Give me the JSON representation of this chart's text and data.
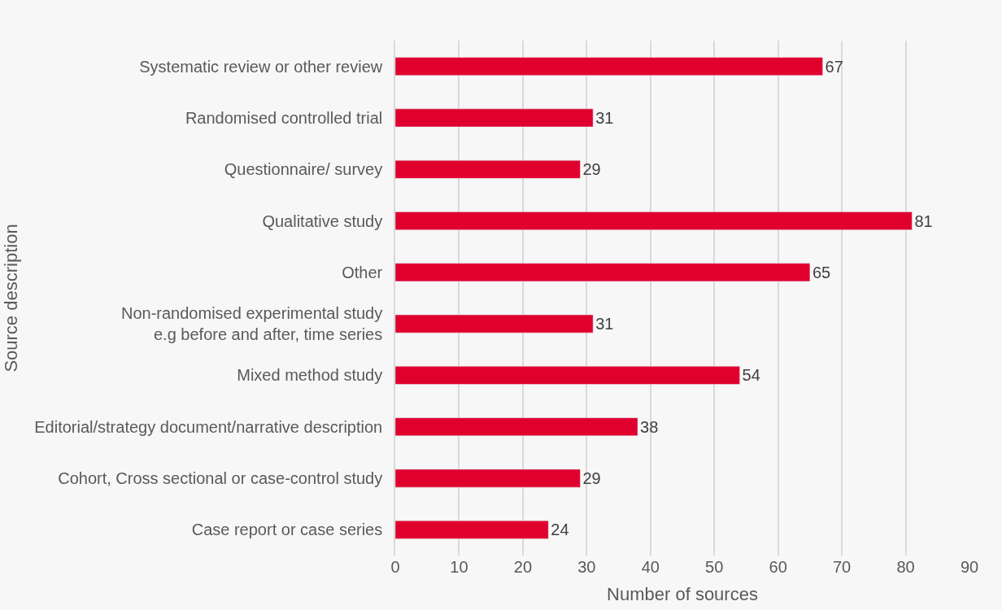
{
  "chart_data": {
    "type": "bar",
    "orientation": "horizontal",
    "categories": [
      "Systematic review or other review",
      "Randomised controlled trial",
      "Questionnaire/ survey",
      "Qualitative study",
      "Other",
      "Non-randomised experimental study\ne.g before and after, time series",
      "Mixed method study",
      "Editorial/strategy document/narrative description",
      "Cohort, Cross sectional or case-control study",
      "Case report or case series"
    ],
    "values": [
      67,
      31,
      29,
      81,
      65,
      31,
      54,
      38,
      29,
      24
    ],
    "color": "#e0002e",
    "xlabel": "Number of sources",
    "ylabel": "Source description",
    "xlim": [
      0,
      90
    ],
    "xticks": [
      0,
      10,
      20,
      30,
      40,
      50,
      60,
      70,
      80,
      90
    ],
    "grid": "x",
    "data_labels": true,
    "legend": false
  }
}
